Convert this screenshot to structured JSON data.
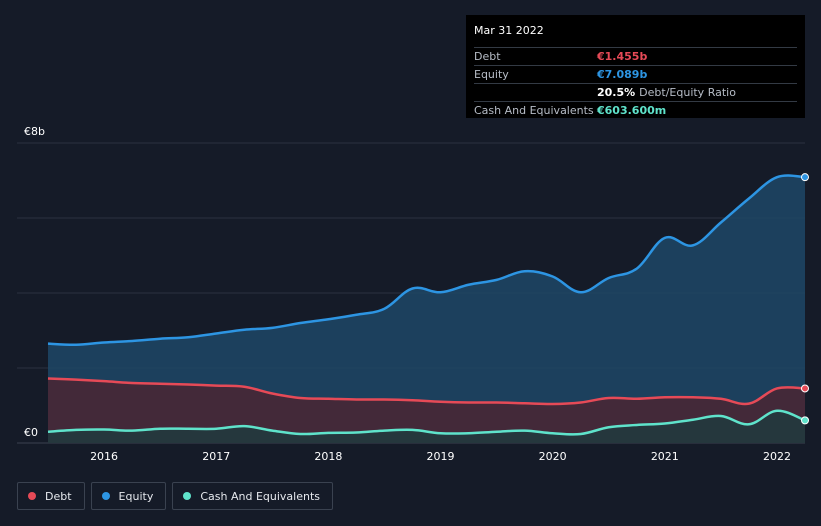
{
  "chart_data": {
    "type": "area",
    "y_axis": {
      "ylim": [
        0,
        8
      ],
      "unit": "€b",
      "ticks": [
        0,
        2,
        4,
        6,
        8
      ],
      "top_label": "€8b",
      "bottom_label": "€0"
    },
    "x_axis": {
      "xlim": [
        2015.5,
        2022.25
      ],
      "tick_labels": [
        "2016",
        "2017",
        "2018",
        "2019",
        "2020",
        "2021",
        "2022"
      ],
      "tick_values": [
        2016,
        2017,
        2018,
        2019,
        2020,
        2021,
        2022
      ]
    },
    "series": [
      {
        "name": "Equity",
        "color": "#2d95e3",
        "fill": "#1d4666",
        "x": [
          2015.5,
          2015.75,
          2016.0,
          2016.25,
          2016.5,
          2016.75,
          2017.0,
          2017.25,
          2017.5,
          2017.75,
          2018.0,
          2018.25,
          2018.5,
          2018.75,
          2019.0,
          2019.25,
          2019.5,
          2019.75,
          2020.0,
          2020.25,
          2020.5,
          2020.75,
          2021.0,
          2021.25,
          2021.5,
          2021.75,
          2022.0,
          2022.25
        ],
        "values": [
          2.65,
          2.62,
          2.68,
          2.72,
          2.78,
          2.82,
          2.92,
          3.02,
          3.07,
          3.2,
          3.3,
          3.42,
          3.58,
          4.12,
          4.02,
          4.22,
          4.35,
          4.58,
          4.44,
          4.02,
          4.4,
          4.65,
          5.47,
          5.27,
          5.88,
          6.52,
          7.089,
          7.089
        ]
      },
      {
        "name": "Debt",
        "color": "#e64a57",
        "fill": "#4a2633",
        "x": [
          2015.5,
          2015.75,
          2016.0,
          2016.25,
          2016.5,
          2016.75,
          2017.0,
          2017.25,
          2017.5,
          2017.75,
          2018.0,
          2018.25,
          2018.5,
          2018.75,
          2019.0,
          2019.25,
          2019.5,
          2019.75,
          2020.0,
          2020.25,
          2020.5,
          2020.75,
          2021.0,
          2021.25,
          2021.5,
          2021.75,
          2022.0,
          2022.25
        ],
        "values": [
          1.72,
          1.69,
          1.65,
          1.6,
          1.58,
          1.56,
          1.53,
          1.5,
          1.32,
          1.2,
          1.18,
          1.16,
          1.16,
          1.14,
          1.1,
          1.08,
          1.08,
          1.06,
          1.04,
          1.08,
          1.2,
          1.18,
          1.22,
          1.22,
          1.18,
          1.05,
          1.455,
          1.455
        ]
      },
      {
        "name": "Cash And Equivalents",
        "color": "#5fe3cb",
        "fill": "#203a3e",
        "x": [
          2015.5,
          2015.75,
          2016.0,
          2016.25,
          2016.5,
          2016.75,
          2017.0,
          2017.25,
          2017.5,
          2017.75,
          2018.0,
          2018.25,
          2018.5,
          2018.75,
          2019.0,
          2019.25,
          2019.5,
          2019.75,
          2020.0,
          2020.25,
          2020.5,
          2020.75,
          2021.0,
          2021.25,
          2021.5,
          2021.75,
          2022.0,
          2022.25
        ],
        "values": [
          0.3,
          0.35,
          0.36,
          0.33,
          0.38,
          0.38,
          0.38,
          0.45,
          0.33,
          0.24,
          0.27,
          0.28,
          0.33,
          0.35,
          0.26,
          0.26,
          0.3,
          0.33,
          0.26,
          0.24,
          0.42,
          0.48,
          0.52,
          0.62,
          0.72,
          0.5,
          0.86,
          0.6036
        ]
      }
    ]
  },
  "tooltip": {
    "date": "Mar 31 2022",
    "debt_label": "Debt",
    "debt_value": "€1.455b",
    "equity_label": "Equity",
    "equity_value": "€7.089b",
    "ratio_value": "20.5%",
    "ratio_label": "Debt/Equity Ratio",
    "cash_label": "Cash And Equivalents",
    "cash_value": "€603.600m"
  },
  "legend": {
    "debt": "Debt",
    "equity": "Equity",
    "cash": "Cash And Equivalents"
  },
  "colors": {
    "debt": "#e64a57",
    "equity": "#2d95e3",
    "cash": "#5fe3cb",
    "background": "#151b28",
    "grid": "#323a48"
  }
}
